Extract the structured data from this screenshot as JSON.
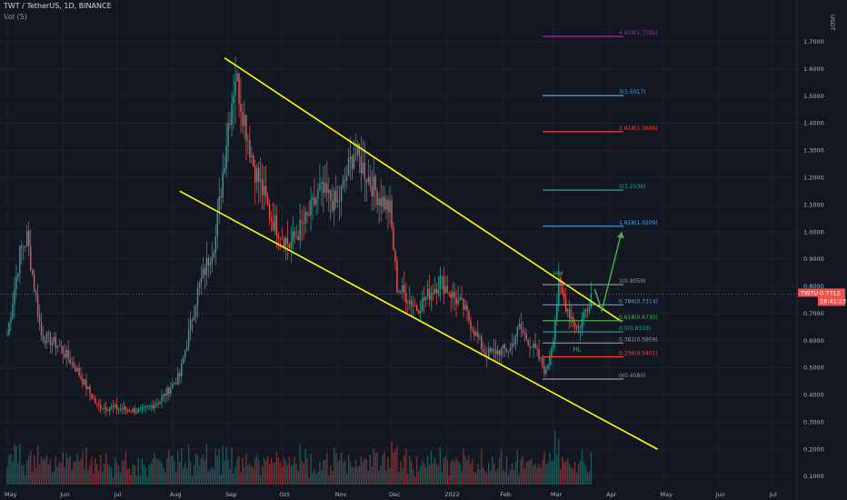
{
  "header": {
    "symbol_title": "TWT / TetherUS, 1D, BINANCE",
    "volume_label": "Vol (5)"
  },
  "price_axis": {
    "currency": "USDT",
    "current_symbol": "TWTUSDT",
    "current_price": "0.7712",
    "countdown": "18:41:23"
  },
  "chart_data": {
    "type": "candlestick",
    "title": "TWT / TetherUS, 1D, BINANCE",
    "y_ticks": [
      0.1,
      0.2,
      0.3,
      0.4,
      0.5,
      0.6,
      0.7,
      0.8,
      0.9,
      1.0,
      1.1,
      1.2,
      1.3,
      1.4,
      1.5,
      1.6,
      1.7
    ],
    "y_tick_labels": [
      "0.1000",
      "0.2000",
      "0.3000",
      "0.4000",
      "0.5000",
      "0.6000",
      "0.7000",
      "0.8000",
      "0.9000",
      "1.0000",
      "1.1000",
      "1.2000",
      "1.3000",
      "1.4000",
      "1.5000",
      "1.6000",
      "1.7000"
    ],
    "ylim": [
      0.08,
      1.82
    ],
    "x_dates": [
      "2021-05-01",
      "2021-06-01",
      "2021-07-01",
      "2021-08-01",
      "2021-09-01",
      "2021-10-01",
      "2021-11-01",
      "2021-12-01",
      "2022-01-01",
      "2022-02-01",
      "2022-03-01",
      "2022-04-01",
      "2022-05-01",
      "2022-06-01",
      "2022-07-01"
    ],
    "x_labels": [
      "May",
      "Jun",
      "Jul",
      "Aug",
      "Sep",
      "Oct",
      "Nov",
      "Dec",
      "2022",
      "Feb",
      "Mar",
      "Apr",
      "May",
      "Jun",
      "Jul"
    ],
    "price_path": [
      {
        "date": "2021-05-01",
        "close": 0.62
      },
      {
        "date": "2021-05-08",
        "close": 0.92
      },
      {
        "date": "2021-05-12",
        "close": 0.98
      },
      {
        "date": "2021-05-20",
        "close": 0.62
      },
      {
        "date": "2021-05-30",
        "close": 0.58
      },
      {
        "date": "2021-06-08",
        "close": 0.5
      },
      {
        "date": "2021-06-20",
        "close": 0.36
      },
      {
        "date": "2021-07-01",
        "close": 0.35
      },
      {
        "date": "2021-07-15",
        "close": 0.34
      },
      {
        "date": "2021-07-25",
        "close": 0.38
      },
      {
        "date": "2021-08-05",
        "close": 0.47
      },
      {
        "date": "2021-08-15",
        "close": 0.78
      },
      {
        "date": "2021-08-25",
        "close": 0.98
      },
      {
        "date": "2021-09-01",
        "close": 1.4
      },
      {
        "date": "2021-09-05",
        "close": 1.58
      },
      {
        "date": "2021-09-15",
        "close": 1.25
      },
      {
        "date": "2021-09-25",
        "close": 1.05
      },
      {
        "date": "2021-10-05",
        "close": 0.95
      },
      {
        "date": "2021-10-15",
        "close": 1.05
      },
      {
        "date": "2021-10-22",
        "close": 1.15
      },
      {
        "date": "2021-11-01",
        "close": 1.1
      },
      {
        "date": "2021-11-10",
        "close": 1.3
      },
      {
        "date": "2021-11-22",
        "close": 1.15
      },
      {
        "date": "2021-11-30",
        "close": 1.08
      },
      {
        "date": "2021-12-04",
        "close": 0.8
      },
      {
        "date": "2021-12-15",
        "close": 0.72
      },
      {
        "date": "2021-12-28",
        "close": 0.82
      },
      {
        "date": "2022-01-10",
        "close": 0.72
      },
      {
        "date": "2022-01-22",
        "close": 0.55
      },
      {
        "date": "2022-02-05",
        "close": 0.57
      },
      {
        "date": "2022-02-10",
        "close": 0.65
      },
      {
        "date": "2022-02-20",
        "close": 0.55
      },
      {
        "date": "2022-02-25",
        "close": 0.48
      },
      {
        "date": "2022-03-01",
        "close": 0.62
      },
      {
        "date": "2022-03-04",
        "close": 0.8
      },
      {
        "date": "2022-03-10",
        "close": 0.7
      },
      {
        "date": "2022-03-15",
        "close": 0.64
      },
      {
        "date": "2022-03-22",
        "close": 0.77
      }
    ],
    "channel": {
      "upper": [
        {
          "date": "2021-08-30",
          "price": 1.64
        },
        {
          "date": "2022-04-08",
          "price": 0.67
        }
      ],
      "lower": [
        {
          "date": "2021-08-05",
          "price": 1.15
        },
        {
          "date": "2022-04-28",
          "price": 0.2
        }
      ],
      "color": "#ffff00"
    },
    "fib_levels": [
      {
        "label": "4.618(1.7192)",
        "value": 1.7192,
        "color": "#9c27b0"
      },
      {
        "label": "3(1.5017)",
        "value": 1.5017,
        "color": "#42a5f5"
      },
      {
        "label": "2.618(1.3686)",
        "value": 1.3686,
        "color": "#f44336"
      },
      {
        "label": "2(1.1536)",
        "value": 1.1536,
        "color": "#26a69a"
      },
      {
        "label": "1.618(1.0209)",
        "value": 1.0209,
        "color": "#42a5f5"
      },
      {
        "label": "1(0.8059)",
        "value": 0.8059,
        "color": "#9598a1"
      },
      {
        "label": "0.786(0.7314)",
        "value": 0.7314,
        "color": "#42a5f5"
      },
      {
        "label": "0.618(0.6730)",
        "value": 0.673,
        "color": "#4caf50"
      },
      {
        "label": "0.5(0.6319)",
        "value": 0.6319,
        "color": "#26a69a"
      },
      {
        "label": "0.382(0.5909)",
        "value": 0.5909,
        "color": "#9598a1"
      },
      {
        "label": "0.236(0.5401)",
        "value": 0.5401,
        "color": "#f44336"
      },
      {
        "label": "0(0.4580)",
        "value": 0.458,
        "color": "#9598a1"
      }
    ],
    "annotations": [
      {
        "text": "HH",
        "date": "2022-03-03",
        "price": 0.84,
        "color": "#4caf50"
      },
      {
        "text": "HL",
        "date": "2022-03-14",
        "price": 0.56,
        "color": "#4caf50"
      }
    ],
    "projection": [
      {
        "date": "2022-03-24",
        "price": 0.79
      },
      {
        "date": "2022-03-28",
        "price": 0.71
      },
      {
        "date": "2022-04-08",
        "price": 1.0
      }
    ],
    "colors": {
      "up": "#26a69a",
      "down": "#ef5350",
      "background": "#131722",
      "grid": "#1e222d",
      "axis_text": "#b2b5be"
    }
  }
}
